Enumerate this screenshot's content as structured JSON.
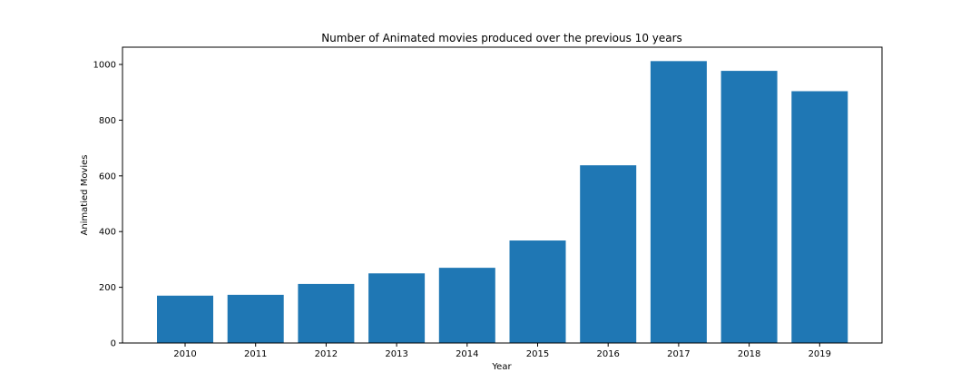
{
  "chart_data": {
    "type": "bar",
    "title": "Number of Animated movies produced over the previous 10 years",
    "xlabel": "Year",
    "ylabel": "Animatied Movies",
    "categories": [
      "2010",
      "2011",
      "2012",
      "2013",
      "2014",
      "2015",
      "2016",
      "2017",
      "2018",
      "2019"
    ],
    "values": [
      170,
      173,
      212,
      250,
      270,
      368,
      638,
      1012,
      977,
      904
    ],
    "ylim": [
      0,
      1062
    ],
    "yticks": [
      0,
      200,
      400,
      600,
      800,
      1000
    ],
    "bar_color": "#1f77b4",
    "grid": false,
    "legend": "none"
  }
}
